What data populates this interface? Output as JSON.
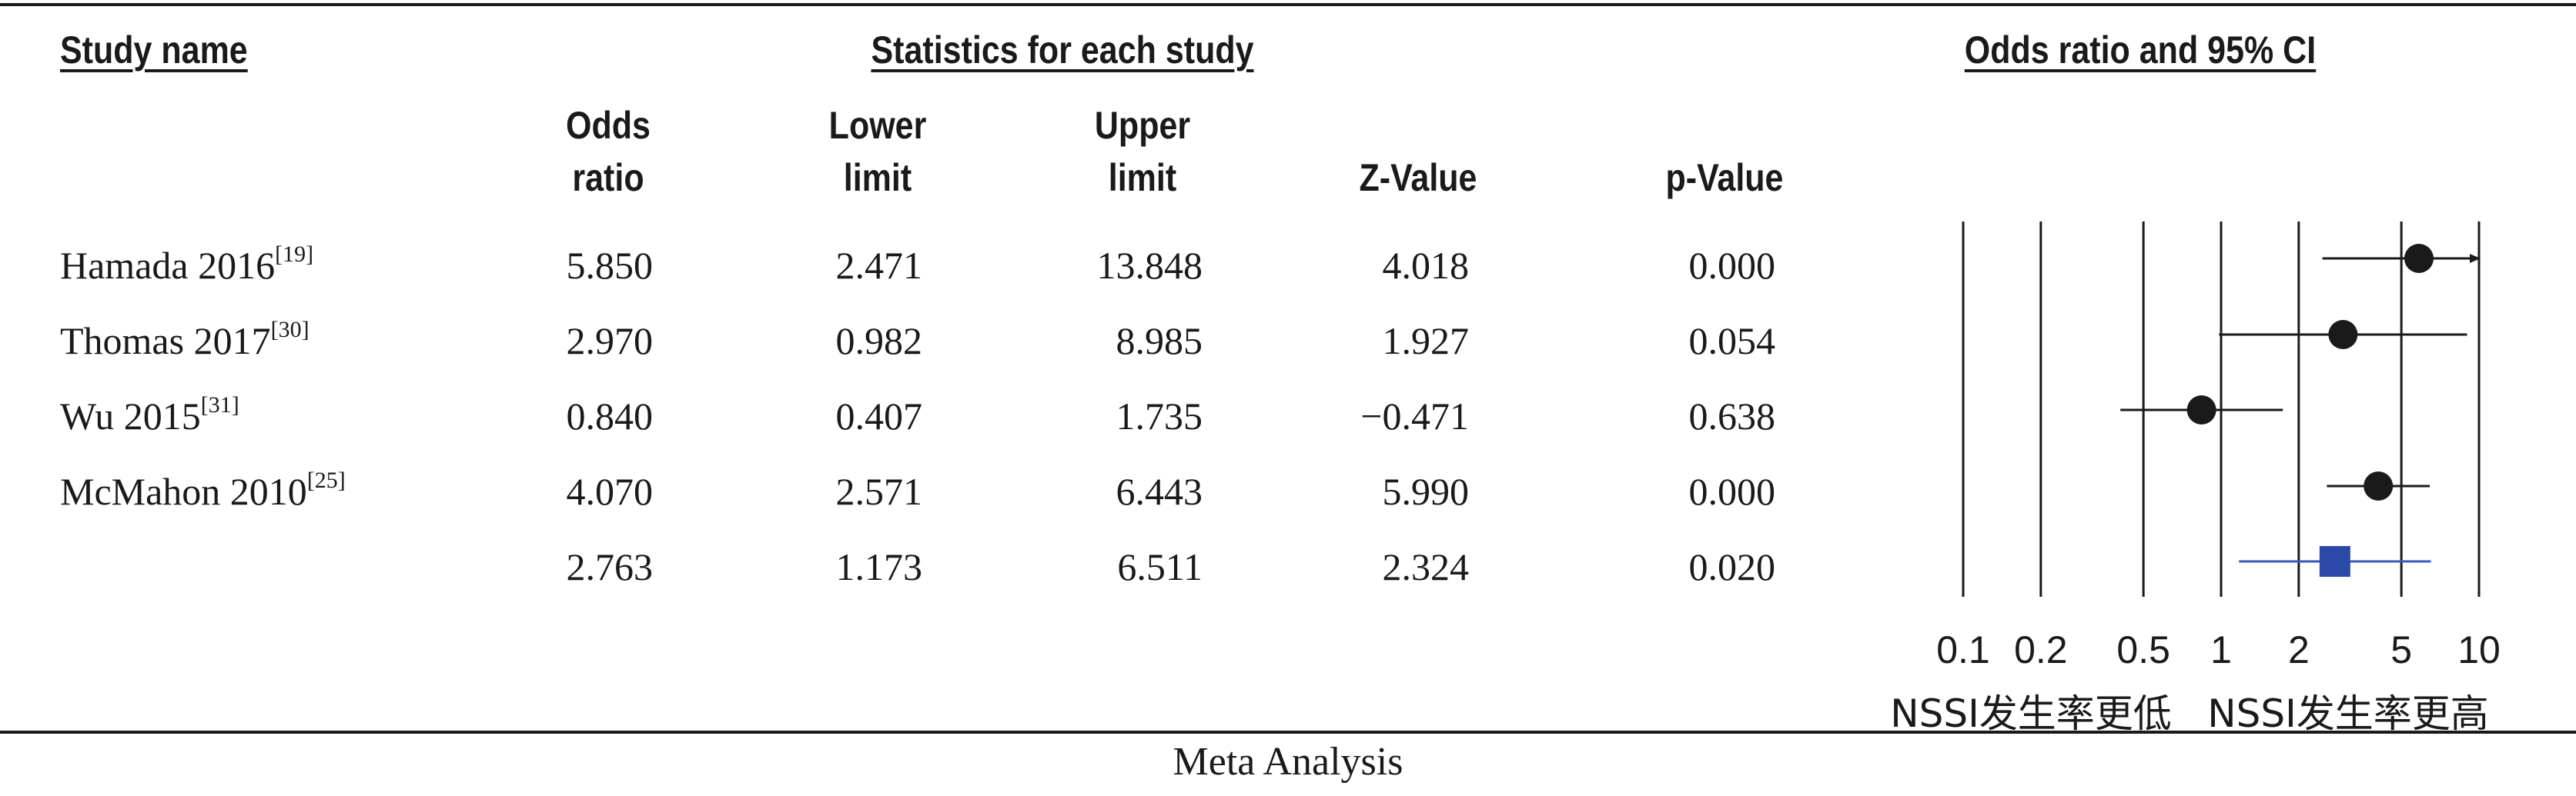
{
  "headers": {
    "study_name": "Study name",
    "stats": "Statistics for each study",
    "ci": "Odds ratio and 95% CI",
    "odds_ratio": [
      "Odds",
      "ratio"
    ],
    "lower_limit": [
      "Lower",
      "limit"
    ],
    "upper_limit": [
      "Upper",
      "limit"
    ],
    "z_value": "Z-Value",
    "p_value": "p-Value"
  },
  "rows": [
    {
      "name": "Hamada 2016",
      "ref": "[19]",
      "or": "5.850",
      "lower": "2.471",
      "upper": "13.848",
      "z": "4.018",
      "p": "0.000"
    },
    {
      "name": "Thomas 2017",
      "ref": "[30]",
      "or": "2.970",
      "lower": "0.982",
      "upper": "8.985",
      "z": "1.927",
      "p": "0.054"
    },
    {
      "name": "Wu 2015",
      "ref": "[31]",
      "or": "0.840",
      "lower": "0.407",
      "upper": "1.735",
      "z": "−0.471",
      "p": "0.638"
    },
    {
      "name": "McMahon 2010",
      "ref": "[25]",
      "or": "4.070",
      "lower": "2.571",
      "upper": "6.443",
      "z": "5.990",
      "p": "0.000"
    },
    {
      "name": "",
      "ref": "",
      "or": "2.763",
      "lower": "1.173",
      "upper": "6.511",
      "z": "2.324",
      "p": "0.020"
    }
  ],
  "chart_data": {
    "type": "scatter",
    "x_scale": "log",
    "xlim": [
      0.1,
      10
    ],
    "tick_labels": [
      "0.1",
      "0.2",
      "0.5",
      "1",
      "2",
      "5",
      "10"
    ],
    "tick_values": [
      0.1,
      0.2,
      0.5,
      1,
      2,
      5,
      10
    ],
    "points": [
      {
        "or": 5.85,
        "lower": 2.471,
        "upper": 13.848,
        "marker": "circle",
        "truncated_right": true
      },
      {
        "or": 2.97,
        "lower": 0.982,
        "upper": 8.985,
        "marker": "circle"
      },
      {
        "or": 0.84,
        "lower": 0.407,
        "upper": 1.735,
        "marker": "circle"
      },
      {
        "or": 4.07,
        "lower": 2.571,
        "upper": 6.443,
        "marker": "circle"
      },
      {
        "or": 2.763,
        "lower": 1.173,
        "upper": 6.511,
        "marker": "square"
      }
    ],
    "left_label": "NSSI发生率更低",
    "right_label": "NSSI发生率更高",
    "colors": {
      "study": "#1a1a1a",
      "summary_marker": "#2b4aa8",
      "summary_line": "#3a5bb5"
    }
  },
  "caption": "Meta Analysis"
}
